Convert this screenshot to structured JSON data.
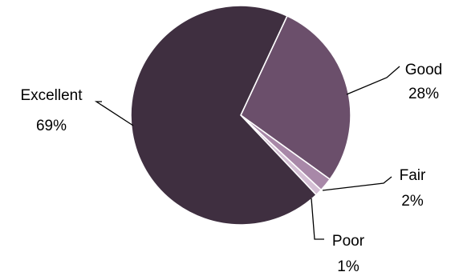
{
  "chart_data": {
    "type": "pie",
    "title": "",
    "slices": [
      {
        "label": "Good",
        "value": 28,
        "display": "28%",
        "color": "#6b4f6b"
      },
      {
        "label": "Fair",
        "value": 2,
        "display": "2%",
        "color": "#a888a8"
      },
      {
        "label": "Poor",
        "value": 1,
        "display": "1%",
        "color": "#d4bfd4"
      },
      {
        "label": "Excellent",
        "value": 69,
        "display": "69%",
        "color": "#3f2f40"
      }
    ],
    "start_angle_deg": 0,
    "direction": "clockwise"
  }
}
